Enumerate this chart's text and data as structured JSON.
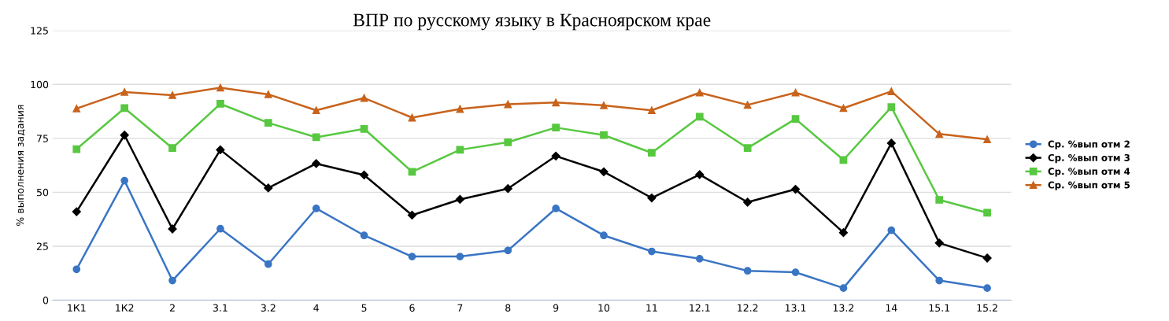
{
  "chart_data": {
    "type": "line",
    "title": "ВПР по русскому языку в Красноярском крае",
    "ylabel": "% выполнения задания",
    "categories": [
      "1К1",
      "1К2",
      "2",
      "3.1",
      "3.2",
      "4",
      "5",
      "6",
      "7",
      "8",
      "9",
      "10",
      "11",
      "12.1",
      "12.2",
      "13.1",
      "13.2",
      "14",
      "15.1",
      "15.2"
    ],
    "series": [
      {
        "name": "Ср. %вып отм 2",
        "color": "#3a75c4",
        "marker": "circle",
        "values": [
          14.3,
          55.4,
          9.1,
          33.1,
          16.7,
          42.5,
          30,
          20.2,
          20.2,
          23,
          42.5,
          30,
          22.6,
          19.2,
          13.6,
          12.9,
          5.6,
          32.4,
          9.1,
          5.6
        ]
      },
      {
        "name": "Ср. %вып отм 3",
        "color": "#000000",
        "marker": "diamond",
        "values": [
          41,
          76.5,
          33,
          69.7,
          52,
          63.3,
          58,
          39.4,
          46.7,
          51.7,
          66.8,
          59.5,
          47.4,
          58.2,
          45.4,
          51.4,
          31.3,
          72.8,
          26.5,
          19.5
        ]
      },
      {
        "name": "Ср. %вып отм 4",
        "color": "#57c840",
        "marker": "square",
        "values": [
          70,
          89,
          70.5,
          91,
          82.2,
          75.5,
          79.4,
          59.5,
          69.7,
          73.2,
          80,
          76.5,
          68.3,
          85,
          70.5,
          84,
          65,
          89.5,
          46.5,
          40.5
        ]
      },
      {
        "name": "Ср. %вып отм 5",
        "color": "#c8631c",
        "marker": "triangle",
        "values": [
          88.8,
          96.5,
          95,
          98.5,
          95.4,
          88,
          93.7,
          84.6,
          88.6,
          90.8,
          91.6,
          90.3,
          88,
          96.2,
          90.5,
          96.2,
          89,
          96.8,
          77,
          74.5
        ]
      }
    ],
    "ylim": [
      0,
      125
    ],
    "yticks": [
      0,
      25,
      50,
      75,
      100,
      125
    ],
    "grid": "y",
    "legend": "right",
    "line_style": "solid"
  }
}
